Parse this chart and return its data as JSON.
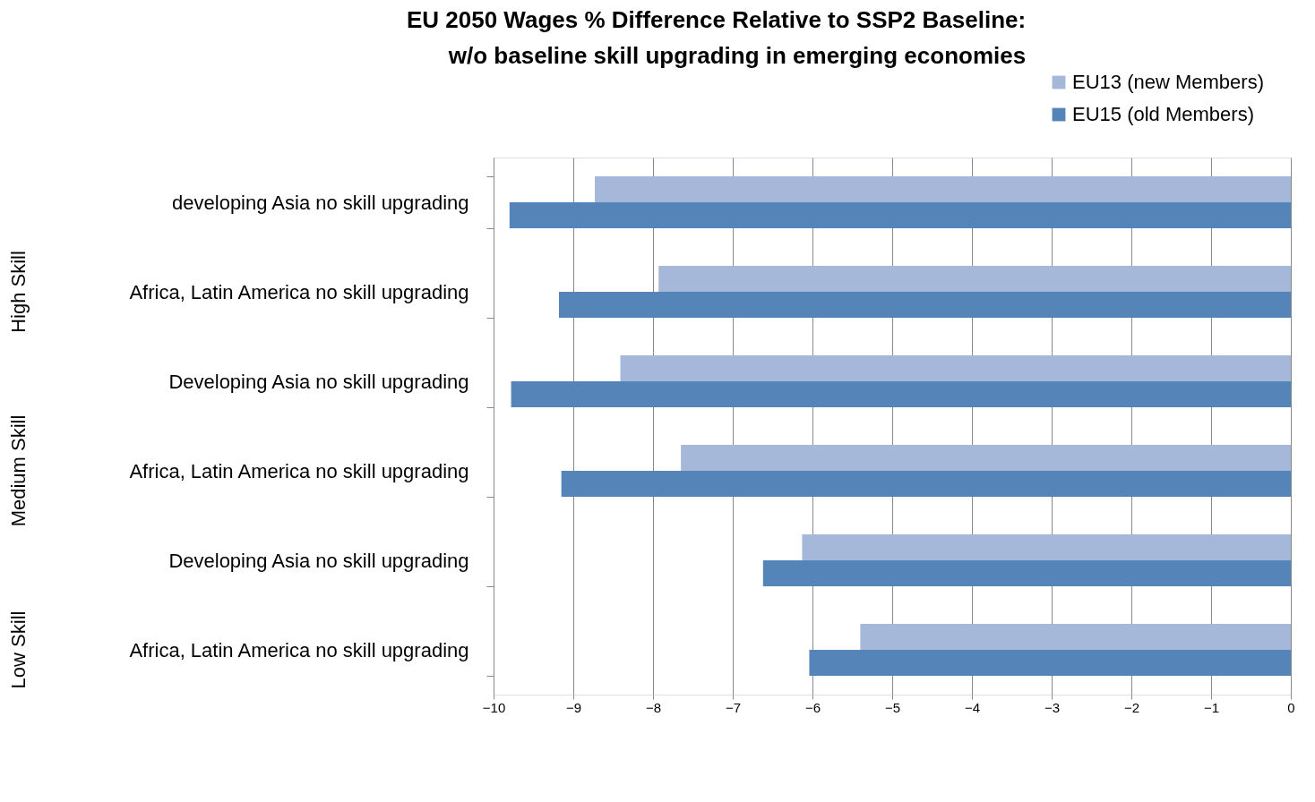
{
  "chart_data": {
    "type": "bar",
    "orientation": "horizontal",
    "title": [
      "EU 2050 Wages % Difference Relative to SSP2 Baseline:",
      "w/o baseline skill upgrading in emerging economies"
    ],
    "categories": [
      "developing Asia no skill upgrading",
      "Africa, Latin America no skill upgrading",
      "Developing Asia no skill upgrading",
      "Africa, Latin America no skill upgrading",
      "Developing Asia no skill upgrading",
      "Africa, Latin America no skill upgrading"
    ],
    "annotations": [
      "High Skill",
      "Medium Skill",
      "Low Skill"
    ],
    "series": [
      {
        "name": "EU13 (new Members)",
        "color": "#a5b8d9",
        "values": [
          -8.73,
          -7.93,
          -8.41,
          -7.65,
          -6.13,
          -5.4
        ]
      },
      {
        "name": "EU15 (old Members)",
        "color": "#5585b8",
        "values": [
          -9.8,
          -9.18,
          -9.78,
          -9.15,
          -6.62,
          -6.04
        ]
      }
    ],
    "xlim": [
      -10,
      0
    ],
    "xticks": [
      -10,
      -9,
      -8,
      -7,
      -6,
      -5,
      -4,
      -3,
      -2,
      -1,
      0
    ],
    "grid": "x",
    "legend": "top right"
  }
}
